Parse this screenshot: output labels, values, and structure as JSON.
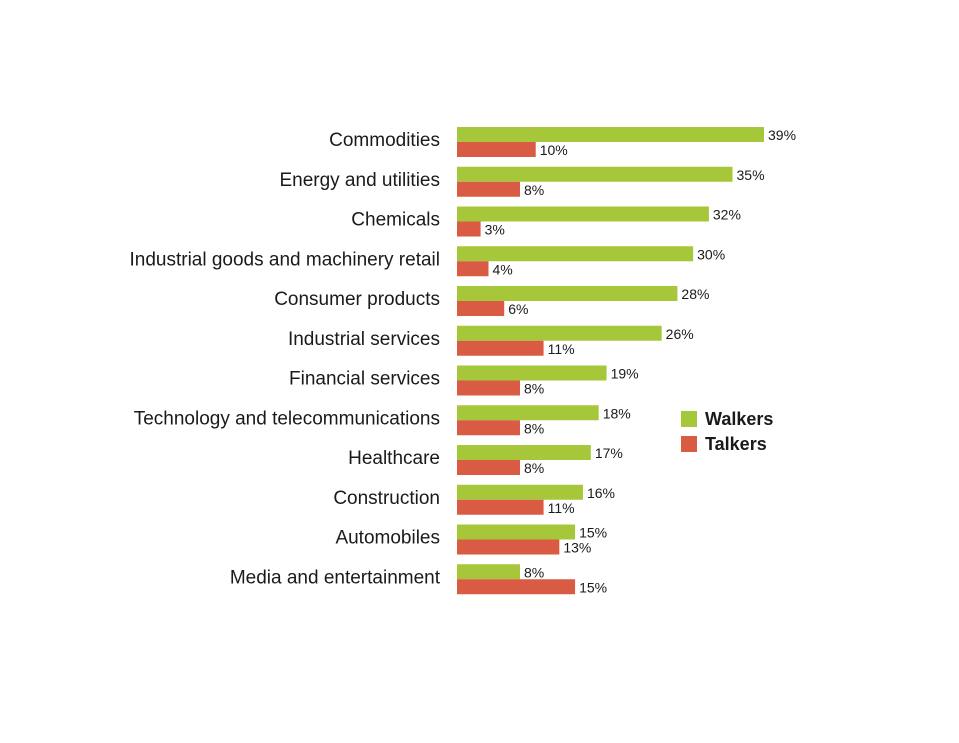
{
  "chart_data": {
    "type": "bar",
    "orientation": "horizontal",
    "categories": [
      "Commodities",
      "Energy and utilities",
      "Chemicals",
      "Industrial goods and machinery retail",
      "Consumer products",
      "Industrial services",
      "Financial services",
      "Technology and telecommunications",
      "Healthcare",
      "Construction",
      "Automobiles",
      "Media and entertainment"
    ],
    "series": [
      {
        "name": "Walkers",
        "color": "#a5c739",
        "values": [
          39,
          35,
          32,
          30,
          28,
          26,
          19,
          18,
          17,
          16,
          15,
          8
        ],
        "labels": [
          "39%",
          "35%",
          "32%",
          "30%",
          "28%",
          "26%",
          "19%",
          "18%",
          "17%",
          "16%",
          "15%",
          "8%"
        ]
      },
      {
        "name": "Talkers",
        "color": "#d95b43",
        "values": [
          10,
          8,
          3,
          4,
          6,
          11,
          8,
          8,
          8,
          11,
          13,
          15
        ],
        "labels": [
          "10%",
          "8%",
          "3%",
          "4%",
          "6%",
          "11%",
          "8%",
          "8%",
          "8%",
          "11%",
          "13%",
          "15%"
        ]
      }
    ],
    "xlim": [
      0,
      39
    ],
    "grid": false,
    "legend_position": "right"
  }
}
